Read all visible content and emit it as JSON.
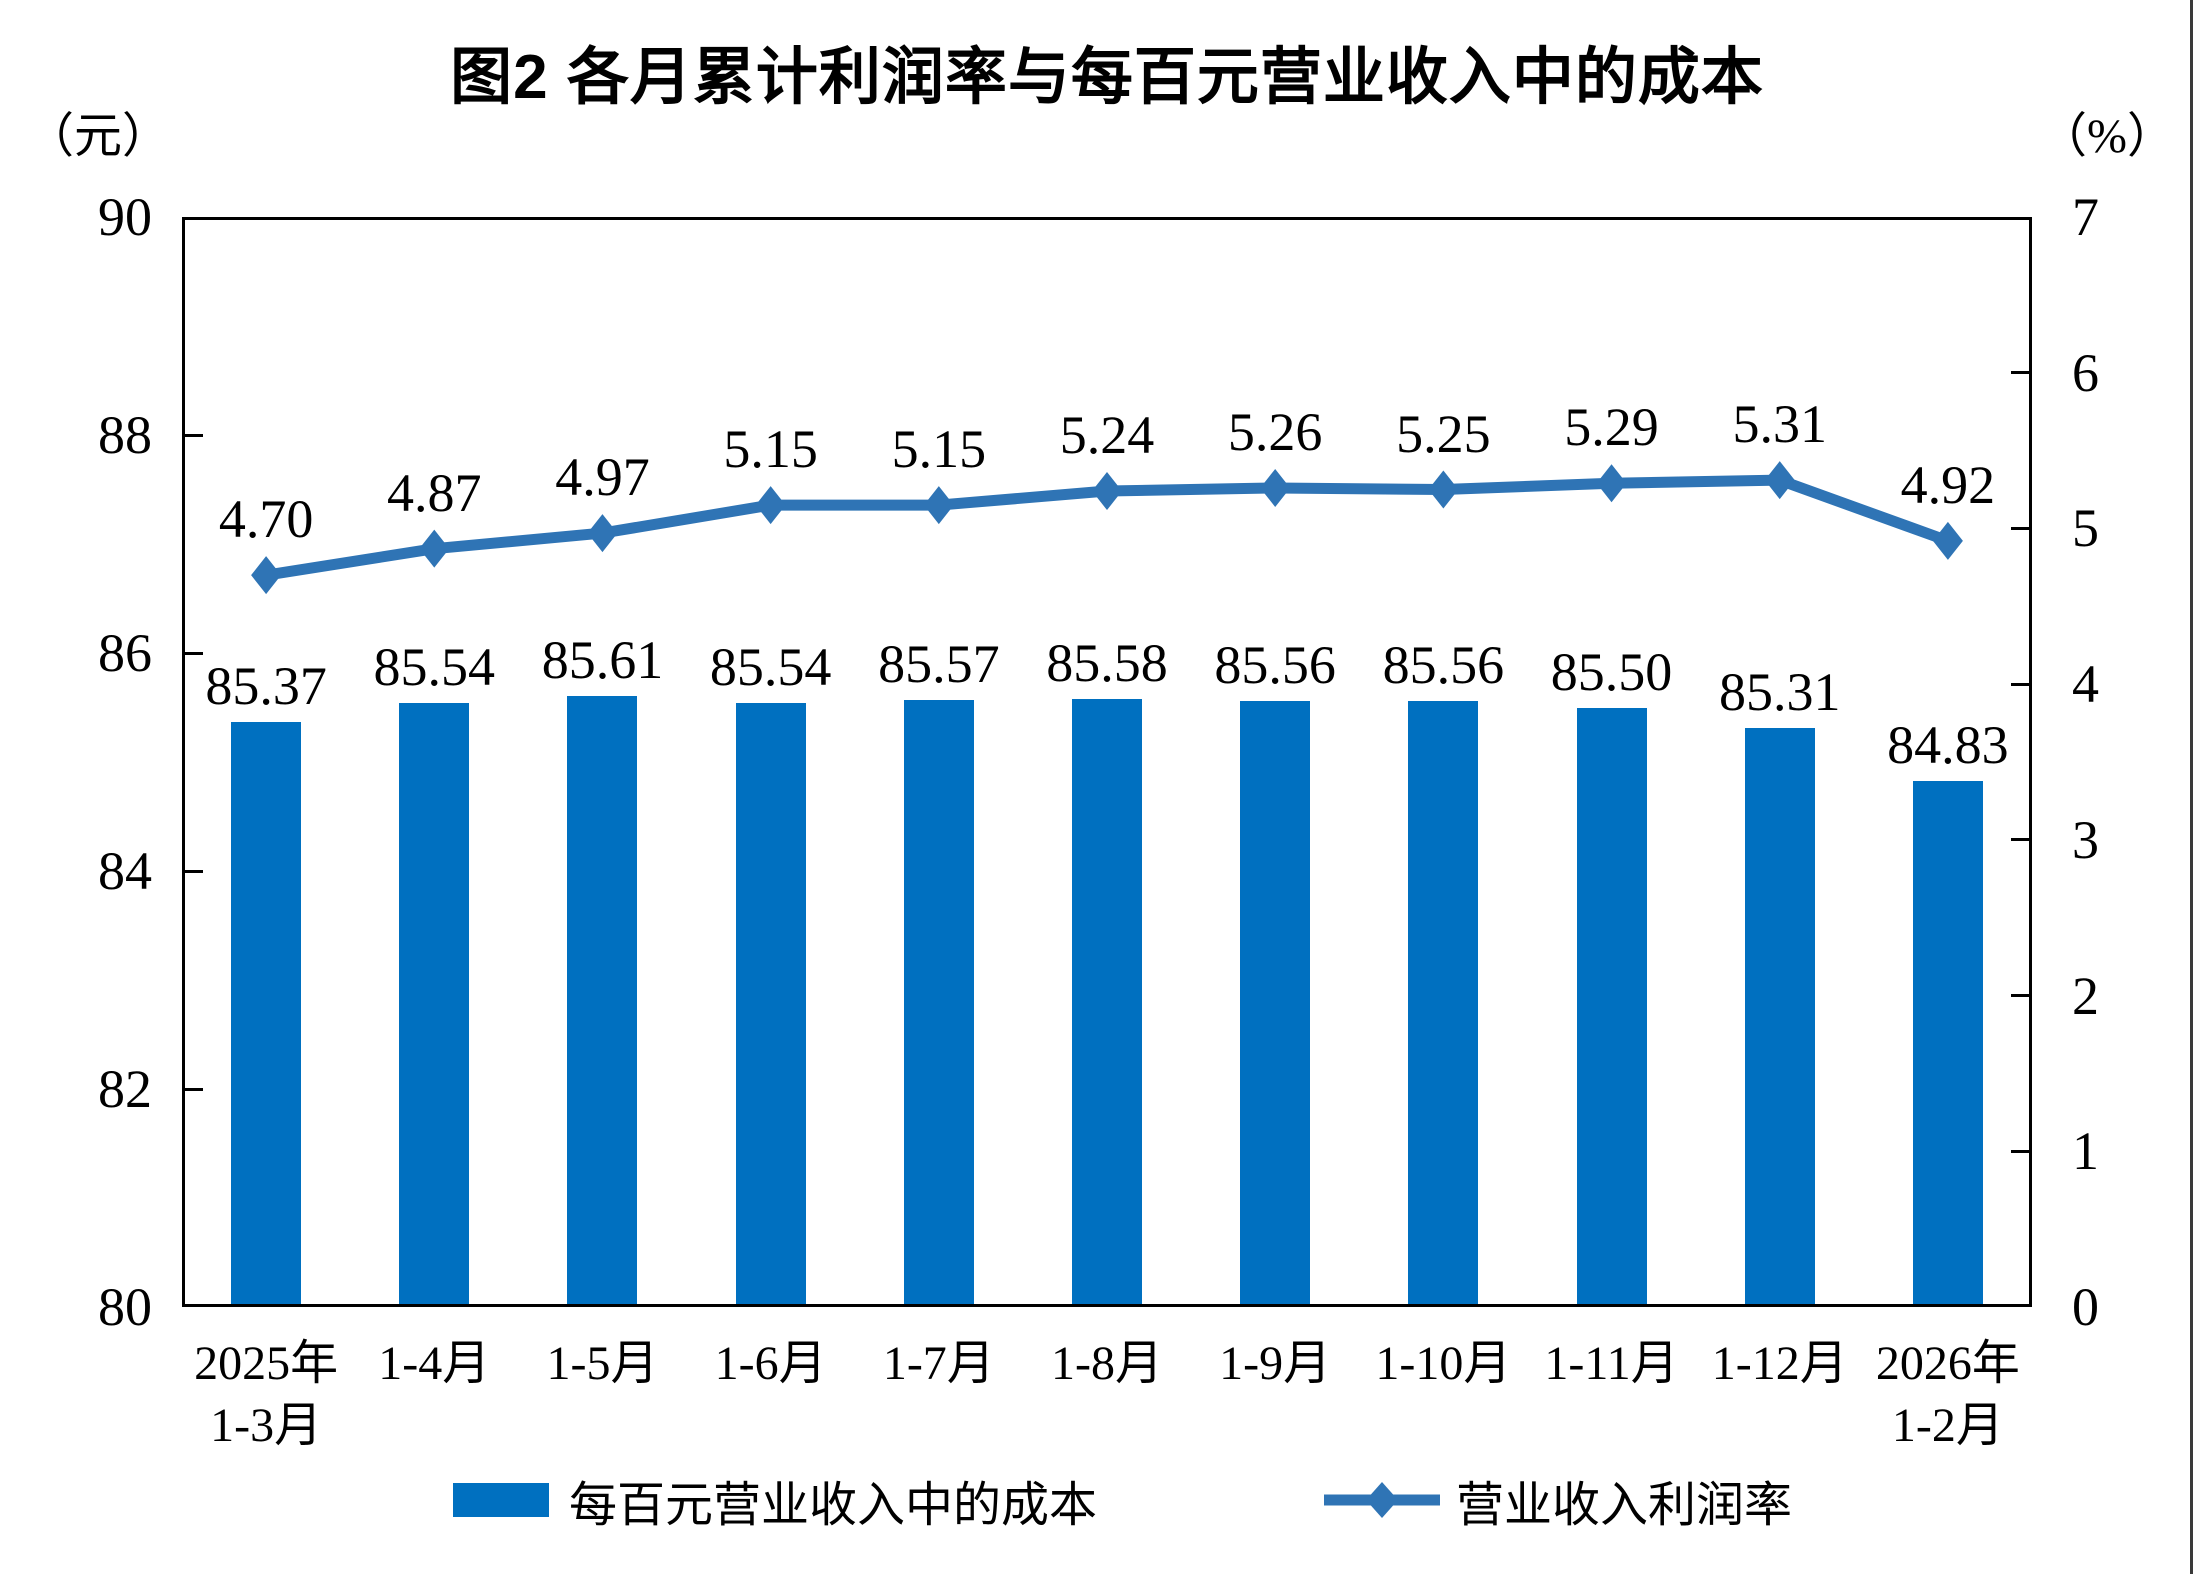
{
  "chart_data": {
    "type": "bar+line",
    "title": "图2 各月累计利润率与每百元营业收入中的成本",
    "categories": [
      "2025年\n1-3月",
      "1-4月",
      "1-5月",
      "1-6月",
      "1-7月",
      "1-8月",
      "1-9月",
      "1-10月",
      "1-11月",
      "1-12月",
      "2026年\n1-2月"
    ],
    "series": [
      {
        "name": "每百元营业收入中的成本",
        "type": "bar",
        "axis": "left",
        "color": "#0070C0",
        "values": [
          85.37,
          85.54,
          85.61,
          85.54,
          85.57,
          85.58,
          85.56,
          85.56,
          85.5,
          85.31,
          84.83
        ]
      },
      {
        "name": "营业收入利润率",
        "type": "line",
        "axis": "right",
        "color": "#2F74B5",
        "marker": "diamond",
        "values": [
          4.7,
          4.87,
          4.97,
          5.15,
          5.15,
          5.24,
          5.26,
          5.25,
          5.29,
          5.31,
          4.92
        ]
      }
    ],
    "left_axis": {
      "unit": "（元）",
      "min": 80,
      "max": 90,
      "step": 2,
      "ticks": [
        90,
        88,
        86,
        84,
        82,
        80
      ]
    },
    "right_axis": {
      "unit": "（%）",
      "min": 0,
      "max": 7,
      "step": 1,
      "ticks": [
        7,
        6,
        5,
        4,
        3,
        2,
        1,
        0
      ]
    },
    "grid": false,
    "legend_position": "bottom",
    "value_label_decimals": 2
  }
}
